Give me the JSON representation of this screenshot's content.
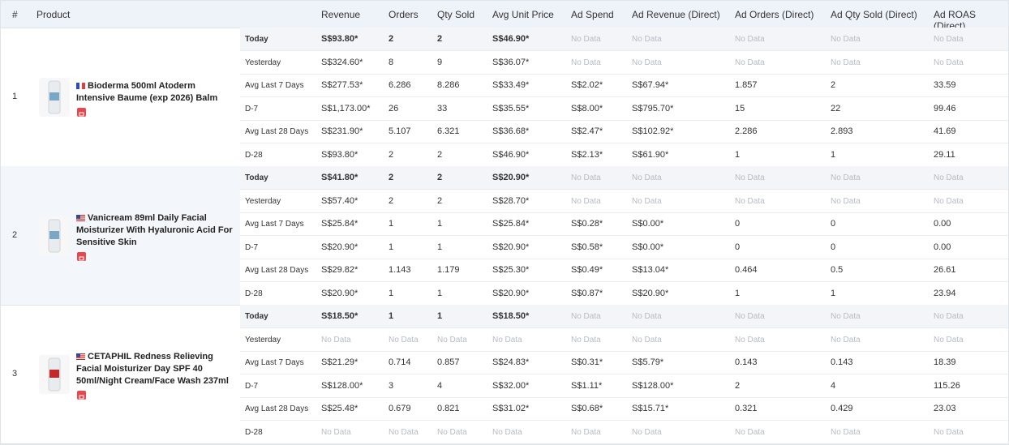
{
  "table": {
    "columns": [
      "#",
      "Product",
      "Revenue",
      "Orders",
      "Qty Sold",
      "Avg Unit Price",
      "Ad Spend",
      "Ad Revenue (Direct)",
      "Ad Orders (Direct)",
      "Ad Qty Sold (Direct)",
      "Ad ROAS (Direct)"
    ],
    "products": [
      {
        "index": "1",
        "name": "Bioderma 500ml Atoderm Intensive Baume (exp 2026) Balm",
        "rows": [
          {
            "period": "Today",
            "values": [
              "S$93.80*",
              "2",
              "2",
              "S$46.90*",
              "No Data",
              "No Data",
              "No Data",
              "No Data",
              "No Data"
            ]
          },
          {
            "period": "Yesterday",
            "values": [
              "S$324.60*",
              "8",
              "9",
              "S$36.07*",
              "No Data",
              "No Data",
              "No Data",
              "No Data",
              "No Data"
            ]
          },
          {
            "period": "Avg Last 7 Days",
            "values": [
              "S$277.53*",
              "6.286",
              "8.286",
              "S$33.49*",
              "S$2.02*",
              "S$67.94*",
              "1.857",
              "2",
              "33.59"
            ]
          },
          {
            "period": "D-7",
            "values": [
              "S$1,173.00*",
              "26",
              "33",
              "S$35.55*",
              "S$8.00*",
              "S$795.70*",
              "15",
              "22",
              "99.46"
            ]
          },
          {
            "period": "Avg Last 28 Days",
            "values": [
              "S$231.90*",
              "5.107",
              "6.321",
              "S$36.68*",
              "S$2.47*",
              "S$102.92*",
              "2.286",
              "2.893",
              "41.69"
            ]
          },
          {
            "period": "D-28",
            "values": [
              "S$93.80*",
              "2",
              "2",
              "S$46.90*",
              "S$2.13*",
              "S$61.90*",
              "1",
              "1",
              "29.11"
            ]
          }
        ]
      },
      {
        "index": "2",
        "name": "Vanicream 89ml Daily Facial Moisturizer With Hyaluronic Acid For Sensitive Skin",
        "rows": [
          {
            "period": "Today",
            "values": [
              "S$41.80*",
              "2",
              "2",
              "S$20.90*",
              "No Data",
              "No Data",
              "No Data",
              "No Data",
              "No Data"
            ]
          },
          {
            "period": "Yesterday",
            "values": [
              "S$57.40*",
              "2",
              "2",
              "S$28.70*",
              "No Data",
              "No Data",
              "No Data",
              "No Data",
              "No Data"
            ]
          },
          {
            "period": "Avg Last 7 Days",
            "values": [
              "S$25.84*",
              "1",
              "1",
              "S$25.84*",
              "S$0.28*",
              "S$0.00*",
              "0",
              "0",
              "0.00"
            ]
          },
          {
            "period": "D-7",
            "values": [
              "S$20.90*",
              "1",
              "1",
              "S$20.90*",
              "S$0.58*",
              "S$0.00*",
              "0",
              "0",
              "0.00"
            ]
          },
          {
            "period": "Avg Last 28 Days",
            "values": [
              "S$29.82*",
              "1.143",
              "1.179",
              "S$25.30*",
              "S$0.49*",
              "S$13.04*",
              "0.464",
              "0.5",
              "26.61"
            ]
          },
          {
            "period": "D-28",
            "values": [
              "S$20.90*",
              "1",
              "1",
              "S$20.90*",
              "S$0.87*",
              "S$20.90*",
              "1",
              "1",
              "23.94"
            ]
          }
        ]
      },
      {
        "index": "3",
        "name": "CETAPHIL Redness Relieving Facial Moisturizer Day SPF 40 50ml/Night Cream/Face Wash 237ml",
        "rows": [
          {
            "period": "Today",
            "values": [
              "S$18.50*",
              "1",
              "1",
              "S$18.50*",
              "No Data",
              "No Data",
              "No Data",
              "No Data",
              "No Data"
            ]
          },
          {
            "period": "Yesterday",
            "values": [
              "No Data",
              "No Data",
              "No Data",
              "No Data",
              "No Data",
              "No Data",
              "No Data",
              "No Data",
              "No Data"
            ]
          },
          {
            "period": "Avg Last 7 Days",
            "values": [
              "S$21.29*",
              "0.714",
              "0.857",
              "S$24.83*",
              "S$0.31*",
              "S$5.79*",
              "0.143",
              "0.143",
              "18.39"
            ]
          },
          {
            "period": "D-7",
            "values": [
              "S$128.00*",
              "3",
              "4",
              "S$32.00*",
              "S$1.11*",
              "S$128.00*",
              "2",
              "4",
              "115.26"
            ]
          },
          {
            "period": "Avg Last 28 Days",
            "values": [
              "S$25.48*",
              "0.679",
              "0.821",
              "S$31.02*",
              "S$0.68*",
              "S$15.71*",
              "0.321",
              "0.429",
              "23.03"
            ]
          },
          {
            "period": "D-28",
            "values": [
              "No Data",
              "No Data",
              "No Data",
              "No Data",
              "No Data",
              "No Data",
              "No Data",
              "No Data",
              "No Data"
            ]
          }
        ]
      }
    ]
  }
}
